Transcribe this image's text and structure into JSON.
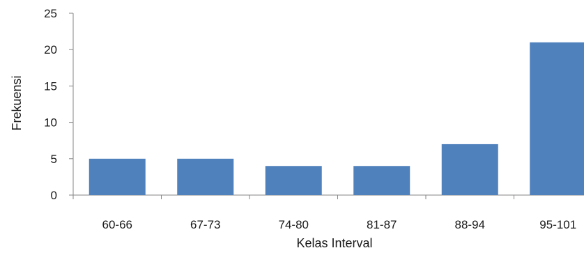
{
  "chart_data": {
    "type": "bar",
    "title": "",
    "xlabel": "Kelas Interval",
    "ylabel": "Frekuensi",
    "categories": [
      "60-66",
      "67-73",
      "74-80",
      "81-87",
      "88-94",
      "95-101"
    ],
    "values": [
      5,
      5,
      4,
      4,
      7,
      21
    ],
    "ylim": [
      0,
      25
    ],
    "yticks": [
      "0",
      "5",
      "10",
      "15",
      "20",
      "25"
    ],
    "grid": false,
    "legend": "none",
    "bar_color": "#4f81bd",
    "axis_color": "#868686"
  }
}
